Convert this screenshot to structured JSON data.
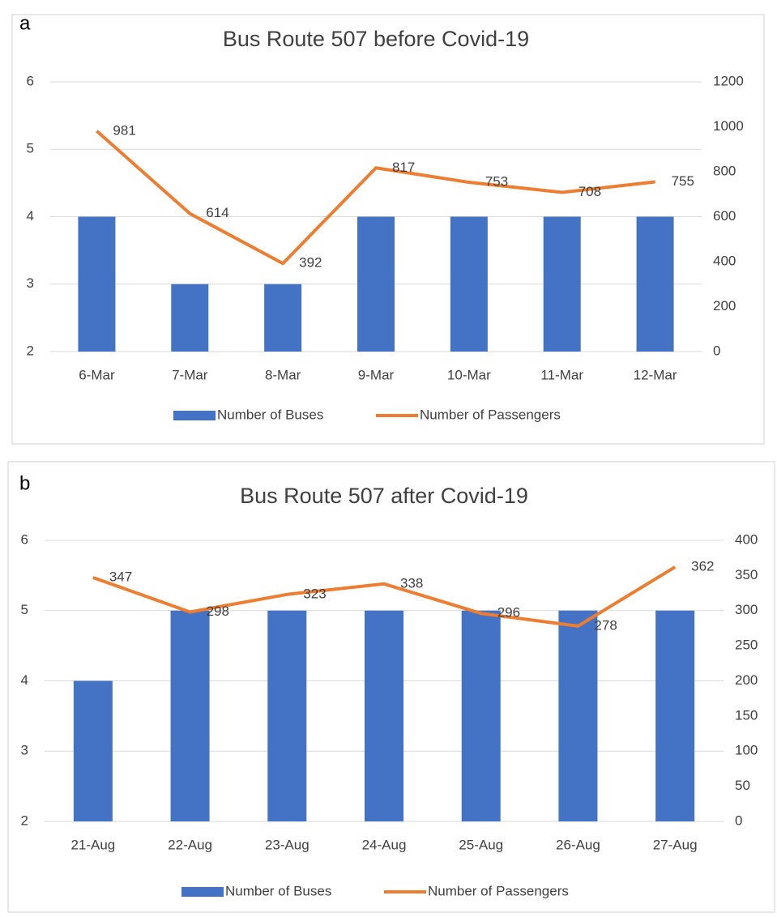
{
  "chart_data": [
    {
      "type": "bar-line",
      "label": "a",
      "title": "Bus Route 507 before Covid-19",
      "categories": [
        "6-Mar",
        "7-Mar",
        "8-Mar",
        "9-Mar",
        "10-Mar",
        "11-Mar",
        "12-Mar"
      ],
      "series": [
        {
          "name": "Number of Buses",
          "type": "bar",
          "color": "#4472c4",
          "values": [
            4,
            3,
            3,
            4,
            4,
            4,
            4
          ]
        },
        {
          "name": "Number of Passengers",
          "type": "line",
          "axis": "y2",
          "color": "#ed7d31",
          "show_values": true,
          "values": [
            981,
            614,
            392,
            817,
            753,
            708,
            755
          ]
        }
      ],
      "ylim": [
        2,
        6
      ],
      "yticks": [
        2,
        3,
        4,
        5,
        6
      ],
      "y2lim": [
        0,
        1200
      ],
      "y2ticks": [
        0,
        200,
        400,
        600,
        800,
        1000,
        1200
      ],
      "grid": true,
      "legend": "bottom"
    },
    {
      "type": "bar-line",
      "label": "b",
      "title": "Bus Route 507 after Covid-19",
      "categories": [
        "21-Aug",
        "22-Aug",
        "23-Aug",
        "24-Aug",
        "25-Aug",
        "26-Aug",
        "27-Aug"
      ],
      "series": [
        {
          "name": "Number of Buses",
          "type": "bar",
          "color": "#4472c4",
          "values": [
            4,
            5,
            5,
            5,
            5,
            5,
            5
          ]
        },
        {
          "name": "Number of Passengers",
          "type": "line",
          "axis": "y2",
          "color": "#ed7d31",
          "show_values": true,
          "values": [
            347,
            298,
            323,
            338,
            296,
            278,
            362
          ]
        }
      ],
      "ylim": [
        2,
        6
      ],
      "yticks": [
        2,
        3,
        4,
        5,
        6
      ],
      "y2lim": [
        0,
        400
      ],
      "y2ticks": [
        0,
        50,
        100,
        150,
        200,
        250,
        300,
        350,
        400
      ],
      "grid": true,
      "legend": "bottom"
    }
  ]
}
